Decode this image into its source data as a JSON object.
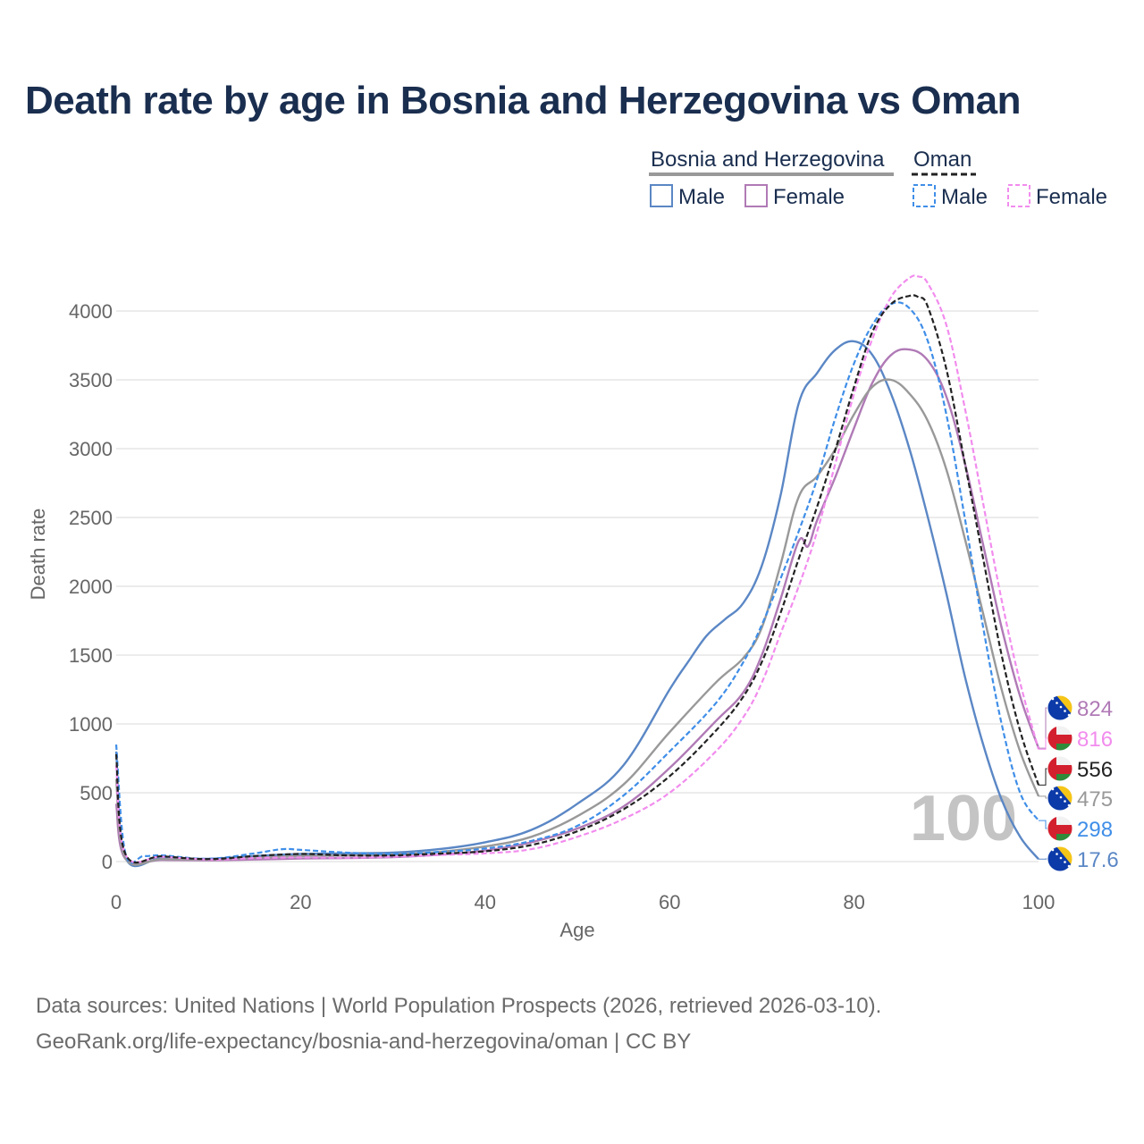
{
  "title": "Death rate by age in Bosnia and Herzegovina vs Oman",
  "footer": {
    "line1": "Data sources: United Nations | World Population Prospects (2026, retrieved 2026-03-10).",
    "line2": "GeoRank.org/life-expectancy/bosnia-and-herzegovina/oman | CC BY"
  },
  "legend": {
    "group1": "Bosnia and Herzegovina",
    "group2": "Oman",
    "male": "Male",
    "female": "Female"
  },
  "watermark": "100",
  "colors": {
    "bih_male": "#5b87c5",
    "bih_female": "#b07ab6",
    "bih_total": "#999999",
    "oman_male": "#3f8ee8",
    "oman_female": "#f28cee",
    "oman_total": "#222222",
    "title": "#1a2e4f"
  },
  "chart_data": {
    "type": "line",
    "title": "Death rate by age in Bosnia and Herzegovina vs Oman",
    "xlabel": "Age",
    "ylabel": "Death rate",
    "xlim": [
      0,
      100
    ],
    "ylim": [
      0,
      4300
    ],
    "xticks": [
      0,
      20,
      40,
      60,
      80,
      100
    ],
    "yticks": [
      0,
      500,
      1000,
      1500,
      2000,
      2500,
      3000,
      3500,
      4000
    ],
    "grid": true,
    "series": [
      {
        "name": "Bosnia and Herzegovina Male",
        "key": "bih_male",
        "dash": false,
        "end_label": "17.6",
        "x": [
          0,
          1,
          5,
          10,
          15,
          20,
          25,
          30,
          35,
          40,
          45,
          50,
          55,
          60,
          62,
          64,
          66,
          68,
          70,
          72,
          74,
          76,
          78,
          80,
          82,
          84,
          86,
          88,
          90,
          92,
          94,
          96,
          98,
          100
        ],
        "y": [
          800,
          30,
          25,
          20,
          40,
          55,
          60,
          65,
          90,
          140,
          230,
          420,
          700,
          1250,
          1450,
          1640,
          1760,
          1880,
          2150,
          2650,
          3330,
          3550,
          3720,
          3780,
          3680,
          3400,
          3000,
          2500,
          1950,
          1350,
          850,
          450,
          180,
          17.6
        ]
      },
      {
        "name": "Bosnia and Herzegovina Female",
        "key": "bih_female",
        "dash": false,
        "end_label": "824",
        "x": [
          0,
          1,
          5,
          10,
          15,
          20,
          25,
          30,
          35,
          40,
          45,
          50,
          55,
          60,
          65,
          68,
          70,
          72,
          74,
          75,
          76,
          78,
          80,
          82,
          84,
          86,
          88,
          90,
          92,
          94,
          96,
          98,
          100
        ],
        "y": [
          420,
          20,
          12,
          10,
          15,
          22,
          25,
          32,
          50,
          80,
          140,
          240,
          400,
          680,
          1020,
          1230,
          1500,
          1900,
          2330,
          2290,
          2480,
          2800,
          3150,
          3480,
          3680,
          3720,
          3640,
          3380,
          2900,
          2300,
          1700,
          1200,
          824
        ]
      },
      {
        "name": "Bosnia and Herzegovina Total",
        "key": "bih_total",
        "dash": false,
        "end_label": "475",
        "x": [
          0,
          1,
          5,
          10,
          15,
          20,
          25,
          30,
          35,
          40,
          45,
          50,
          55,
          60,
          65,
          68,
          70,
          72,
          74,
          76,
          78,
          80,
          82,
          84,
          86,
          88,
          90,
          92,
          94,
          96,
          98,
          100
        ],
        "y": [
          600,
          25,
          18,
          15,
          28,
          40,
          45,
          50,
          70,
          110,
          180,
          330,
          560,
          940,
          1300,
          1480,
          1700,
          2150,
          2650,
          2800,
          3000,
          3250,
          3450,
          3500,
          3400,
          3200,
          2850,
          2350,
          1800,
          1250,
          800,
          475
        ]
      },
      {
        "name": "Oman Male",
        "key": "oman_male",
        "dash": true,
        "end_label": "298",
        "x": [
          0,
          1,
          3,
          5,
          10,
          15,
          18,
          20,
          25,
          30,
          35,
          40,
          45,
          50,
          55,
          60,
          65,
          68,
          70,
          72,
          74,
          76,
          78,
          80,
          82,
          84,
          86,
          88,
          90,
          92,
          94,
          96,
          98,
          100
        ],
        "y": [
          850,
          60,
          40,
          45,
          20,
          60,
          90,
          85,
          65,
          55,
          70,
          95,
          150,
          260,
          480,
          800,
          1150,
          1450,
          1720,
          2050,
          2400,
          2780,
          3230,
          3620,
          3900,
          4050,
          4020,
          3780,
          3250,
          2500,
          1700,
          1000,
          500,
          298
        ]
      },
      {
        "name": "Oman Female",
        "key": "oman_female",
        "dash": true,
        "end_label": "816",
        "x": [
          0,
          1,
          5,
          10,
          15,
          20,
          25,
          30,
          35,
          40,
          45,
          50,
          55,
          60,
          65,
          68,
          70,
          72,
          74,
          76,
          78,
          80,
          82,
          84,
          86,
          87,
          88,
          90,
          92,
          94,
          96,
          98,
          100
        ],
        "y": [
          700,
          50,
          35,
          15,
          25,
          30,
          28,
          35,
          48,
          60,
          90,
          180,
          310,
          500,
          800,
          1050,
          1300,
          1650,
          2000,
          2400,
          2900,
          3400,
          3800,
          4100,
          4240,
          4250,
          4200,
          3900,
          3300,
          2600,
          1900,
          1300,
          816
        ]
      },
      {
        "name": "Oman Total",
        "key": "oman_total",
        "dash": true,
        "end_label": "556",
        "x": [
          0,
          1,
          5,
          10,
          15,
          20,
          25,
          30,
          35,
          40,
          45,
          50,
          55,
          60,
          65,
          68,
          70,
          72,
          74,
          76,
          78,
          80,
          82,
          84,
          86,
          87,
          88,
          90,
          92,
          94,
          96,
          98,
          100
        ],
        "y": [
          780,
          55,
          38,
          18,
          40,
          55,
          45,
          45,
          58,
          75,
          120,
          220,
          380,
          620,
          950,
          1200,
          1450,
          1800,
          2200,
          2580,
          3000,
          3450,
          3850,
          4050,
          4110,
          4100,
          4030,
          3580,
          2900,
          2200,
          1500,
          950,
          556
        ]
      }
    ]
  }
}
